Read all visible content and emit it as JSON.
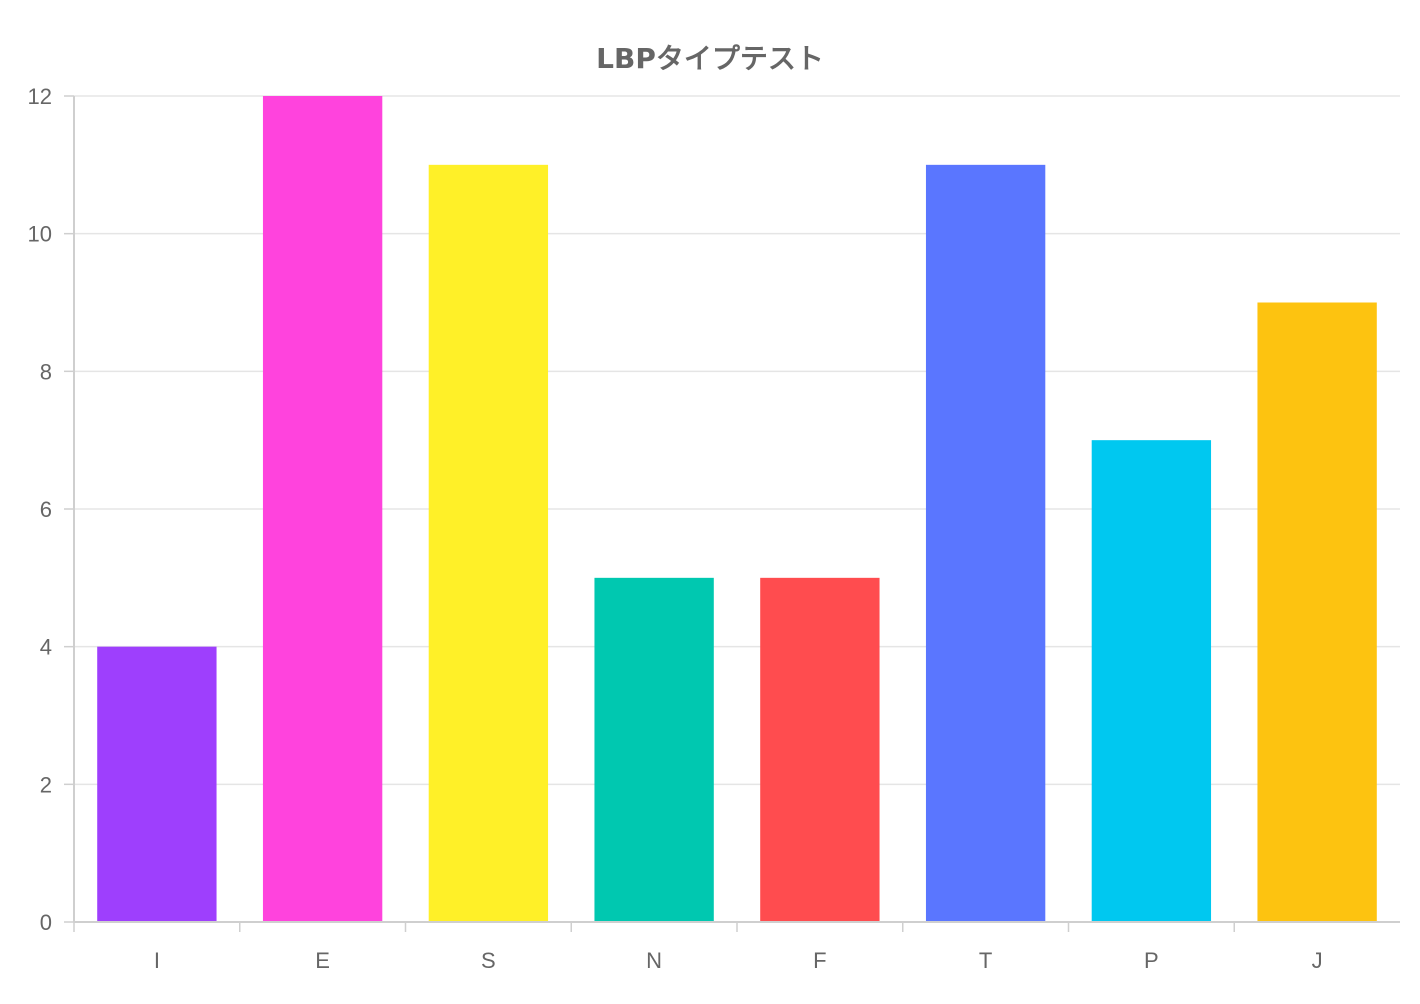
{
  "chart_data": {
    "type": "bar",
    "title": "LBPタイプテスト",
    "categories": [
      "I",
      "E",
      "S",
      "N",
      "F",
      "T",
      "P",
      "J"
    ],
    "values": [
      4,
      12,
      11,
      5,
      5,
      11,
      7,
      9
    ],
    "colors": [
      "#9e3ffd",
      "#ff43dd",
      "#fff028",
      "#00c8b0",
      "#ff4c4f",
      "#5a76ff",
      "#00c8f0",
      "#fdc310"
    ],
    "ylim": [
      0,
      12
    ],
    "yticks": [
      0,
      2,
      4,
      6,
      8,
      10,
      12
    ],
    "grid": true,
    "legend": "none",
    "xlabel": "",
    "ylabel": ""
  }
}
